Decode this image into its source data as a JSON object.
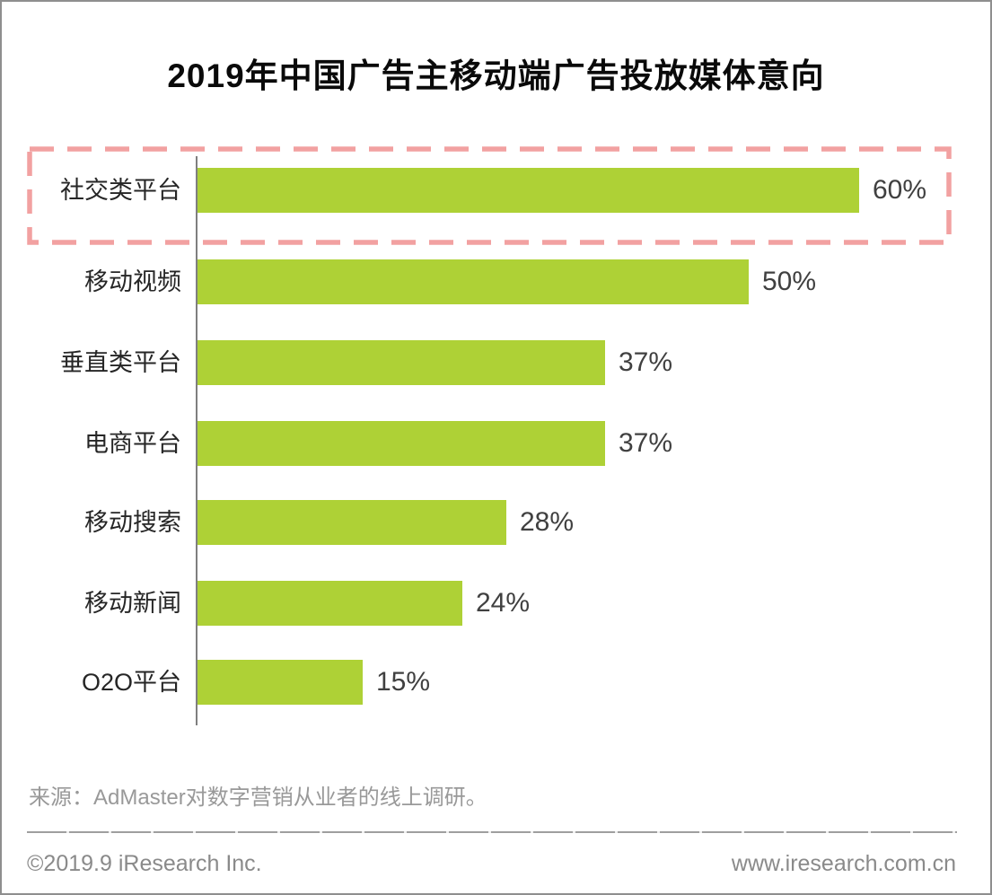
{
  "title": "2019年中国广告主移动端广告投放媒体意向",
  "chart_data": {
    "type": "bar",
    "orientation": "horizontal",
    "categories": [
      "社交类平台",
      "移动视频",
      "垂直类平台",
      "电商平台",
      "移动搜索",
      "移动新闻",
      "O2O平台"
    ],
    "values": [
      60,
      50,
      37,
      37,
      28,
      24,
      15
    ],
    "value_labels": [
      "60%",
      "50%",
      "37%",
      "37%",
      "28%",
      "24%",
      "15%"
    ],
    "xlim": [
      0,
      70
    ],
    "grid": "off",
    "legend": "none",
    "bar_color": "#aed136",
    "highlighted_category": "社交类平台",
    "highlight_box_color": "#f2a1a1",
    "axis_color": "#7f7f7f"
  },
  "source": "来源：AdMaster对数字营销从业者的线上调研。",
  "footer": {
    "copyright": "©2019.9 iResearch Inc.",
    "website": "www.iresearch.com.cn"
  }
}
